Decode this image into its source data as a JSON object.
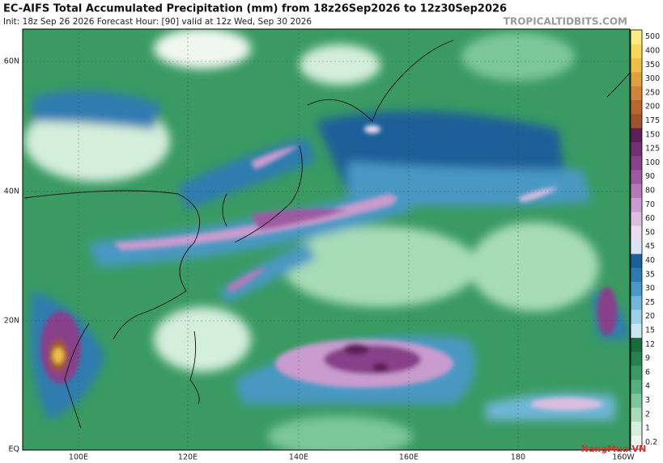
{
  "header": {
    "title": "EC-AIFS Total Accumulated Precipitation (mm) from 18z26Sep2026 to 12z30Sep2026",
    "subtitle": "Init: 18z Sep 26 2026   Forecast Hour: [90]   valid at 12z Wed, Sep 30 2026",
    "source": "TROPICALTIDBITS.COM"
  },
  "map": {
    "lat_labels": [
      "60N",
      "40N",
      "20N",
      "EQ"
    ],
    "lon_labels": [
      "100E",
      "120E",
      "140E",
      "160E",
      "180",
      "160W"
    ]
  },
  "colorbar": {
    "levels": [
      "0.2",
      "1",
      "2",
      "3",
      "4",
      "6",
      "9",
      "12",
      "15",
      "20",
      "25",
      "30",
      "35",
      "40",
      "45",
      "50",
      "60",
      "70",
      "80",
      "90",
      "100",
      "125",
      "150",
      "175",
      "200",
      "250",
      "300",
      "350",
      "400",
      "500"
    ],
    "colors": [
      "#f0f7f0",
      "#d4eedc",
      "#a8dcb8",
      "#7cc79a",
      "#55b07c",
      "#3a9a62",
      "#26824d",
      "#1b6a3d",
      "#c8e6f0",
      "#9cd0e6",
      "#6fb6d8",
      "#4a98c4",
      "#2f7bb0",
      "#1d5f98",
      "#d8e4f4",
      "#ecdcef",
      "#dcbfe0",
      "#c99bce",
      "#b47ab8",
      "#9e5aa0",
      "#88418a",
      "#733070",
      "#5c1f58",
      "#a0522d",
      "#b8652f",
      "#d0833a",
      "#e0a040",
      "#eebd4a",
      "#f7d65a",
      "#fdec80"
    ]
  },
  "watermark": "NangMua.VN"
}
